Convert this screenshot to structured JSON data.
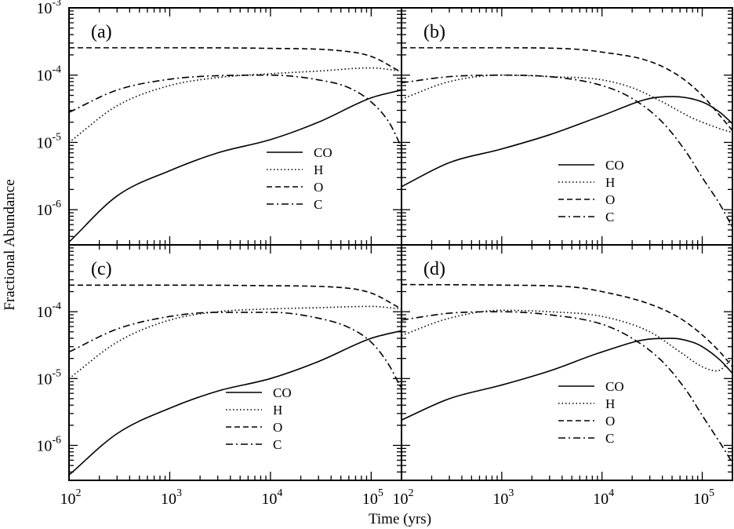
{
  "chart_data": {
    "type": "line",
    "ylabel": "Fractional Abundance",
    "xlabel": "Time (yrs)",
    "xscale": "log",
    "yscale": "log",
    "xlim": [
      100,
      200000
    ],
    "ylim": [
      3e-07,
      0.001
    ],
    "x_ticks": [
      100,
      1000,
      10000,
      100000
    ],
    "y_ticks": [
      1e-06,
      1e-05,
      0.0001,
      0.001
    ],
    "x_tick_labels": [
      {
        "base": "10",
        "exp": "2"
      },
      {
        "base": "10",
        "exp": "3"
      },
      {
        "base": "10",
        "exp": "4"
      },
      {
        "base": "10",
        "exp": "5"
      }
    ],
    "y_tick_labels": [
      {
        "base": "10",
        "exp": "-6"
      },
      {
        "base": "10",
        "exp": "-5"
      },
      {
        "base": "10",
        "exp": "-4"
      },
      {
        "base": "10",
        "exp": "-3"
      }
    ],
    "series_styles": [
      {
        "name": "CO",
        "dash": "solid"
      },
      {
        "name": "H",
        "dash": "dotted"
      },
      {
        "name": "O",
        "dash": "dashed"
      },
      {
        "name": "C",
        "dash": "dashdot"
      }
    ],
    "panels": [
      {
        "label": "(a)",
        "legend": "center-right",
        "series": [
          {
            "name": "CO",
            "x": [
              100,
              300,
              1000,
              3000,
              10000,
              30000,
              100000,
              200000
            ],
            "y": [
              3.3e-07,
              1.6e-06,
              3.8e-06,
              7e-06,
              1.1e-05,
              2e-05,
              4.6e-05,
              6e-05
            ]
          },
          {
            "name": "H",
            "x": [
              100,
              300,
              1000,
              3000,
              10000,
              30000,
              100000,
              200000
            ],
            "y": [
              1e-05,
              3.5e-05,
              7e-05,
              9.2e-05,
              0.000105,
              0.000115,
              0.000128,
              0.000115
            ]
          },
          {
            "name": "O",
            "x": [
              100,
              1000,
              10000,
              50000,
              100000,
              200000
            ],
            "y": [
              0.000255,
              0.000255,
              0.00025,
              0.00023,
              0.00019,
              0.00011
            ]
          },
          {
            "name": "C",
            "x": [
              100,
              300,
              1000,
              3000,
              10000,
              30000,
              60000,
              100000,
              150000,
              200000
            ],
            "y": [
              2.8e-05,
              6e-05,
              8.7e-05,
              9.8e-05,
              0.0001,
              8.5e-05,
              6.5e-05,
              4e-05,
              2e-05,
              8.5e-06
            ]
          }
        ]
      },
      {
        "label": "(b)",
        "legend": "bottom-right",
        "series": [
          {
            "name": "CO",
            "x": [
              100,
              300,
              1000,
              3000,
              10000,
              30000,
              50000,
              100000,
              150000,
              200000
            ],
            "y": [
              2.2e-06,
              5e-06,
              8e-06,
              1.3e-05,
              2.5e-05,
              4.5e-05,
              4.8e-05,
              4e-05,
              2.8e-05,
              1.9e-05
            ]
          },
          {
            "name": "H",
            "x": [
              100,
              300,
              1000,
              3000,
              10000,
              20000,
              40000,
              80000,
              150000,
              200000
            ],
            "y": [
              4.4e-05,
              8e-05,
              0.0001,
              9.5e-05,
              8.5e-05,
              6.5e-05,
              4e-05,
              2.3e-05,
              1.6e-05,
              1.4e-05
            ]
          },
          {
            "name": "O",
            "x": [
              100,
              1000,
              5000,
              10000,
              30000,
              60000,
              100000,
              150000,
              200000
            ],
            "y": [
              0.000255,
              0.000255,
              0.000245,
              0.00022,
              0.00016,
              9.5e-05,
              5e-05,
              2.5e-05,
              1.5e-05
            ]
          },
          {
            "name": "C",
            "x": [
              100,
              300,
              1000,
              3000,
              10000,
              20000,
              40000,
              70000,
              100000,
              150000,
              200000
            ],
            "y": [
              7.7e-05,
              9.5e-05,
              0.0001,
              9.5e-05,
              7e-05,
              4.5e-05,
              2e-05,
              7e-06,
              3e-06,
              1.2e-06,
              5.5e-07
            ]
          }
        ]
      },
      {
        "label": "(c)",
        "legend": "bottom-right",
        "series": [
          {
            "name": "CO",
            "x": [
              100,
              300,
              1000,
              3000,
              10000,
              30000,
              100000,
              200000
            ],
            "y": [
              3.6e-07,
              1.5e-06,
              3.6e-06,
              6.5e-06,
              1e-05,
              1.8e-05,
              4e-05,
              5.2e-05
            ]
          },
          {
            "name": "H",
            "x": [
              100,
              300,
              1000,
              3000,
              10000,
              30000,
              100000,
              200000
            ],
            "y": [
              1e-05,
              3.5e-05,
              7.5e-05,
              0.0001,
              0.00011,
              0.000115,
              0.00012,
              0.00011
            ]
          },
          {
            "name": "O",
            "x": [
              100,
              1000,
              10000,
              50000,
              100000,
              200000
            ],
            "y": [
              0.00025,
              0.00025,
              0.000245,
              0.00023,
              0.00019,
              0.00011
            ]
          },
          {
            "name": "C",
            "x": [
              100,
              300,
              1000,
              3000,
              10000,
              30000,
              60000,
              100000,
              150000,
              200000
            ],
            "y": [
              2.5e-05,
              5.5e-05,
              8.5e-05,
              9.8e-05,
              9.8e-05,
              8e-05,
              5.8e-05,
              3.5e-05,
              1.6e-05,
              7e-06
            ]
          }
        ]
      },
      {
        "label": "(d)",
        "legend": "bottom-right",
        "series": [
          {
            "name": "CO",
            "x": [
              100,
              300,
              1000,
              3000,
              10000,
              30000,
              50000,
              80000,
              100000,
              150000,
              200000
            ],
            "y": [
              2.4e-06,
              5e-06,
              8e-06,
              1.3e-05,
              2.5e-05,
              3.9e-05,
              4e-05,
              3.5e-05,
              3e-05,
              1.9e-05,
              1.2e-05
            ]
          },
          {
            "name": "H",
            "x": [
              100,
              300,
              1000,
              3000,
              10000,
              30000,
              60000,
              100000,
              140000,
              200000
            ],
            "y": [
              4.4e-05,
              8e-05,
              0.000105,
              0.0001,
              8.5e-05,
              5e-05,
              2.5e-05,
              1.5e-05,
              1.3e-05,
              2e-05
            ]
          },
          {
            "name": "O",
            "x": [
              100,
              1000,
              5000,
              10000,
              30000,
              60000,
              100000,
              150000,
              200000
            ],
            "y": [
              0.000255,
              0.00025,
              0.000235,
              0.0002,
              0.00013,
              8e-05,
              4.5e-05,
              2.5e-05,
              1.5e-05
            ]
          },
          {
            "name": "C",
            "x": [
              100,
              300,
              1000,
              3000,
              10000,
              20000,
              40000,
              70000,
              100000,
              150000,
              200000
            ],
            "y": [
              7.5e-05,
              9.5e-05,
              0.0001,
              9e-05,
              6.5e-05,
              4e-05,
              1.8e-05,
              6.5e-06,
              2.8e-06,
              1.1e-06,
              5.5e-07
            ]
          }
        ]
      }
    ]
  }
}
